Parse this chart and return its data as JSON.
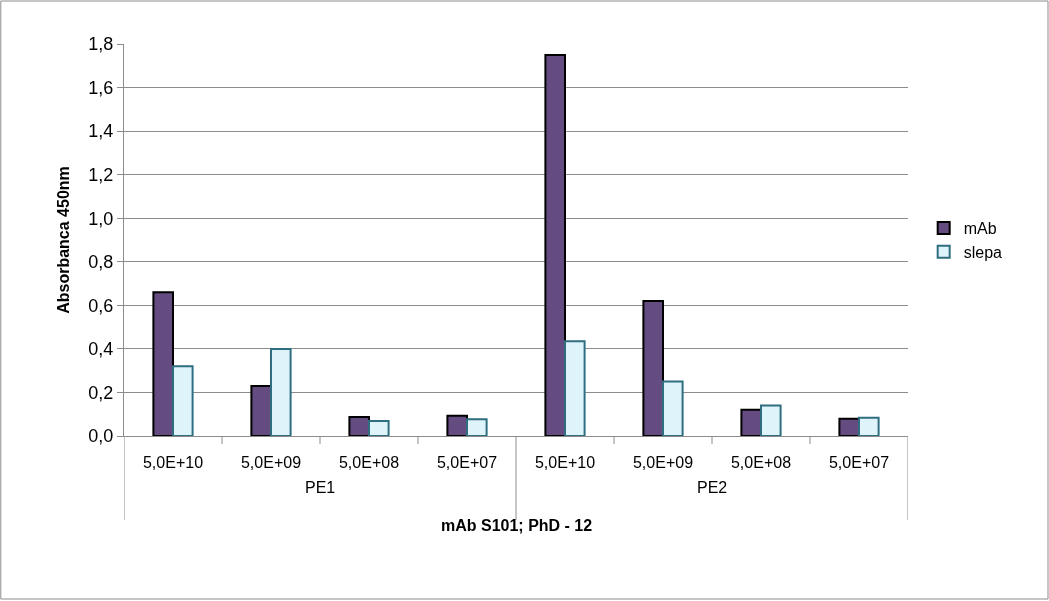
{
  "chart_data": {
    "type": "bar",
    "xlabel": "mAb S101; PhD - 12",
    "ylabel": "Absorbanca 450nm",
    "categories": [
      "5,0E+10",
      "5,0E+09",
      "5,0E+08",
      "5,0E+07",
      "5,0E+10",
      "5,0E+09",
      "5,0E+08",
      "5,0E+07"
    ],
    "annotations": [
      "PE1",
      "PE2"
    ],
    "series": [
      {
        "name": "mAb",
        "color": "#644b80",
        "values": [
          0.66,
          0.23,
          0.087,
          0.093,
          1.75,
          0.62,
          0.12,
          0.079
        ]
      },
      {
        "name": "slepa",
        "color": "#dff3fa",
        "values": [
          0.32,
          0.4,
          0.069,
          0.077,
          0.435,
          0.25,
          0.14,
          0.084
        ]
      }
    ],
    "ylim": [
      0,
      1.8
    ],
    "yticks": [
      {
        "value": 0,
        "label": "0,0"
      },
      {
        "value": 0.2,
        "label": "0,2"
      },
      {
        "value": 0.4,
        "label": "0,4"
      },
      {
        "value": 0.6,
        "label": "0,6"
      },
      {
        "value": 0.8,
        "label": "0,8"
      },
      {
        "value": 1.0,
        "label": "1,0"
      },
      {
        "value": 1.2,
        "label": "1,2"
      },
      {
        "value": 1.4,
        "label": "1,4"
      },
      {
        "value": 1.6,
        "label": "1,6"
      },
      {
        "value": 1.8,
        "label": "1,8"
      }
    ],
    "grid": "y",
    "legend": "right"
  }
}
